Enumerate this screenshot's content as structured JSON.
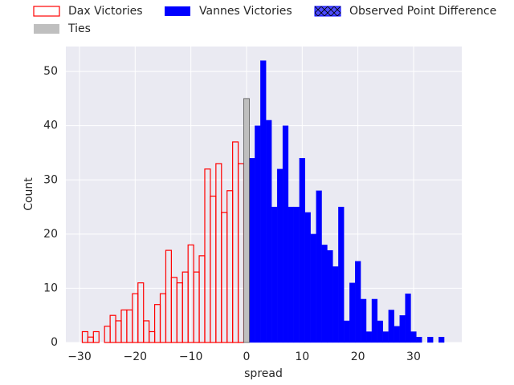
{
  "chart_data": {
    "type": "histogram",
    "xlabel": "spread",
    "ylabel": "Count",
    "xlim": [
      -32.45,
      38.66
    ],
    "ylim": [
      0,
      54.6
    ],
    "xticks": [
      {
        "value": -30,
        "label": "−30"
      },
      {
        "value": -20,
        "label": "−20"
      },
      {
        "value": -10,
        "label": "−10"
      },
      0,
      10,
      20,
      30
    ],
    "yticks": [
      0,
      10,
      20,
      30,
      40,
      50
    ],
    "grid": true,
    "series": [
      {
        "name": "Dax Victories",
        "color": "#ff0000",
        "histtype": "step",
        "bins": [
          -29.5,
          -28.5,
          -27.5,
          -26.5,
          -25.5,
          -24.5,
          -23.5,
          -22.5,
          -21.5,
          -20.5,
          -19.5,
          -18.5,
          -17.5,
          -16.5,
          -15.5,
          -14.5,
          -13.5,
          -12.5,
          -11.5,
          -10.5,
          -9.5,
          -8.5,
          -7.5,
          -6.5,
          -5.5,
          -4.5,
          -3.5,
          -2.5,
          -1.5,
          -0.5
        ],
        "values": [
          2,
          1,
          2,
          0,
          3,
          5,
          4,
          6,
          6,
          9,
          11,
          4,
          2,
          7,
          9,
          17,
          12,
          11,
          13,
          18,
          13,
          16,
          32,
          27,
          33,
          24,
          28,
          37,
          33
        ]
      },
      {
        "name": "Vannes Victories",
        "color": "#0000ff",
        "histtype": "bar",
        "bins": [
          0.5,
          1.5,
          2.5,
          3.5,
          4.5,
          5.5,
          6.5,
          7.5,
          8.5,
          9.5,
          10.5,
          11.5,
          12.5,
          13.5,
          14.5,
          15.5,
          16.5,
          17.5,
          18.5,
          19.5,
          20.5,
          21.5,
          22.5,
          23.5,
          24.5,
          25.5,
          26.5,
          27.5,
          28.5,
          29.5,
          30.5,
          31.5,
          32.5,
          33.5,
          34.5,
          35.5
        ],
        "values": [
          34,
          40,
          52,
          41,
          25,
          32,
          40,
          25,
          25,
          34,
          24,
          20,
          28,
          18,
          17,
          14,
          25,
          4,
          11,
          15,
          8,
          2,
          8,
          4,
          2,
          6,
          3,
          5,
          9,
          2,
          1,
          0,
          1,
          0,
          1
        ]
      },
      {
        "name": "Observed Point Difference",
        "color": "#0000ff",
        "histtype": "hatch"
      },
      {
        "name": "Ties",
        "color": "#bfbfbf",
        "histtype": "bar",
        "bins": [
          -0.5,
          0.5
        ],
        "values": [
          45
        ]
      }
    ]
  }
}
